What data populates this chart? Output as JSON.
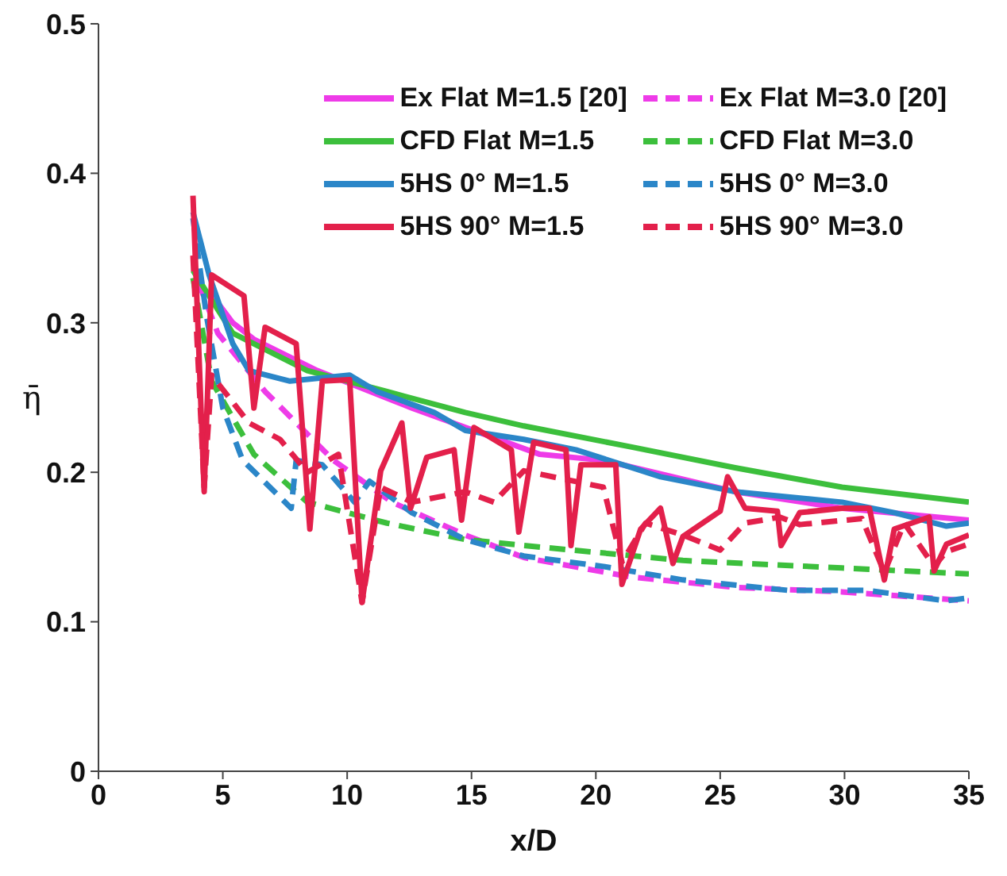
{
  "chart_data": {
    "type": "line",
    "xlabel": "x/D",
    "ylabel": "η̄",
    "xlim": [
      0,
      35
    ],
    "xticks": [
      0,
      5,
      10,
      15,
      20,
      25,
      30,
      35
    ],
    "ylim": [
      0,
      0.5
    ],
    "yticks": [
      0,
      0.1,
      0.2,
      0.3,
      0.4,
      0.5
    ],
    "legend": "top right",
    "series": [
      {
        "name": "Ex Flat M=1.5 [20]",
        "color": "#ee3be8",
        "line_style": "solid",
        "x": [
          4.5,
          5.4,
          6.25,
          8.8,
          12.6,
          17.75,
          20.3,
          25.6,
          29.9,
          35
        ],
        "values": [
          0.32,
          0.3,
          0.289,
          0.268,
          0.243,
          0.212,
          0.208,
          0.187,
          0.176,
          0.168
        ]
      },
      {
        "name": "Ex Flat M=3.0 [20]",
        "color": "#ee3be8",
        "line_style": "dashed",
        "x": [
          4,
          4.8,
          6.7,
          9.45,
          11.8,
          14.75,
          17.1,
          21.4,
          25.6,
          29.9,
          35
        ],
        "values": [
          0.328,
          0.293,
          0.254,
          0.208,
          0.18,
          0.158,
          0.143,
          0.13,
          0.123,
          0.12,
          0.114
        ]
      },
      {
        "name": "CFD Flat M=1.5",
        "color": "#3cbf3c",
        "line_style": "solid",
        "x": [
          3.8,
          5.4,
          8.4,
          11.6,
          14.75,
          17.1,
          21.4,
          25.6,
          29.9,
          35
        ],
        "values": [
          0.335,
          0.293,
          0.268,
          0.254,
          0.24,
          0.231,
          0.217,
          0.203,
          0.19,
          0.18
        ]
      },
      {
        "name": "CFD Flat M=3.0",
        "color": "#3cbf3c",
        "line_style": "dashed",
        "x": [
          3.8,
          4.55,
          6.25,
          8.4,
          11.6,
          14.75,
          17.1,
          23.5,
          29.9,
          35
        ],
        "values": [
          0.33,
          0.261,
          0.212,
          0.18,
          0.166,
          0.155,
          0.151,
          0.141,
          0.136,
          0.132
        ]
      },
      {
        "name": "5HS 0° M=1.5",
        "color": "#2b86c8",
        "line_style": "solid",
        "x": [
          3.8,
          4.45,
          5.4,
          6.05,
          7.7,
          10.1,
          11.2,
          13.5,
          14.75,
          17.1,
          19.2,
          22.6,
          25.6,
          29.9,
          32,
          34.1,
          35
        ],
        "values": [
          0.374,
          0.332,
          0.286,
          0.268,
          0.261,
          0.265,
          0.254,
          0.24,
          0.228,
          0.222,
          0.215,
          0.197,
          0.187,
          0.18,
          0.173,
          0.164,
          0.166
        ]
      },
      {
        "name": "5HS 0° M=3.0",
        "color": "#2b86c8",
        "line_style": "dashed",
        "x": [
          3.8,
          4.35,
          5,
          5.8,
          7.75,
          7.95,
          9,
          10.3,
          10.9,
          12.6,
          14.75,
          17.1,
          20.3,
          23.5,
          27.75,
          30.9,
          34.1,
          35
        ],
        "values": [
          0.37,
          0.304,
          0.243,
          0.208,
          0.176,
          0.208,
          0.205,
          0.18,
          0.194,
          0.173,
          0.155,
          0.144,
          0.137,
          0.128,
          0.121,
          0.121,
          0.114,
          0.116
        ]
      },
      {
        "name": "5HS 90° M=1.5",
        "color": "#e3204b",
        "line_style": "solid",
        "x": [
          3.8,
          4.25,
          4.55,
          5.85,
          6.25,
          6.7,
          7.95,
          8.5,
          9,
          10.1,
          10.6,
          11.35,
          12.2,
          12.55,
          13.2,
          14.3,
          14.6,
          15.1,
          16.6,
          16.9,
          17.5,
          18.8,
          19,
          19.4,
          20.8,
          21.05,
          21.8,
          22.6,
          23.1,
          23.5,
          25,
          25.3,
          26,
          27.3,
          27.45,
          28.2,
          29.9,
          31,
          31.6,
          32,
          33.4,
          33.6,
          34.1,
          35
        ],
        "values": [
          0.385,
          0.187,
          0.332,
          0.318,
          0.243,
          0.297,
          0.286,
          0.162,
          0.261,
          0.262,
          0.113,
          0.201,
          0.233,
          0.176,
          0.21,
          0.215,
          0.168,
          0.23,
          0.215,
          0.16,
          0.22,
          0.215,
          0.151,
          0.205,
          0.205,
          0.125,
          0.162,
          0.176,
          0.139,
          0.157,
          0.174,
          0.197,
          0.176,
          0.174,
          0.151,
          0.173,
          0.176,
          0.176,
          0.128,
          0.162,
          0.17,
          0.134,
          0.152,
          0.158
        ]
      },
      {
        "name": "5HS 90° M=3.0",
        "color": "#e3204b",
        "line_style": "dashed",
        "x": [
          3.8,
          4.25,
          4.55,
          6.05,
          7.3,
          8.4,
          9.65,
          10.6,
          11.35,
          12.6,
          14.75,
          15.9,
          17.1,
          20.3,
          21.05,
          22,
          23.5,
          25,
          26,
          27.4,
          28.2,
          30.7,
          31.6,
          32.4,
          33.6,
          34.1,
          35
        ],
        "values": [
          0.345,
          0.19,
          0.265,
          0.233,
          0.222,
          0.2,
          0.212,
          0.113,
          0.19,
          0.18,
          0.187,
          0.18,
          0.201,
          0.19,
          0.14,
          0.166,
          0.158,
          0.148,
          0.166,
          0.17,
          0.165,
          0.169,
          0.133,
          0.166,
          0.137,
          0.147,
          0.152
        ]
      }
    ]
  }
}
